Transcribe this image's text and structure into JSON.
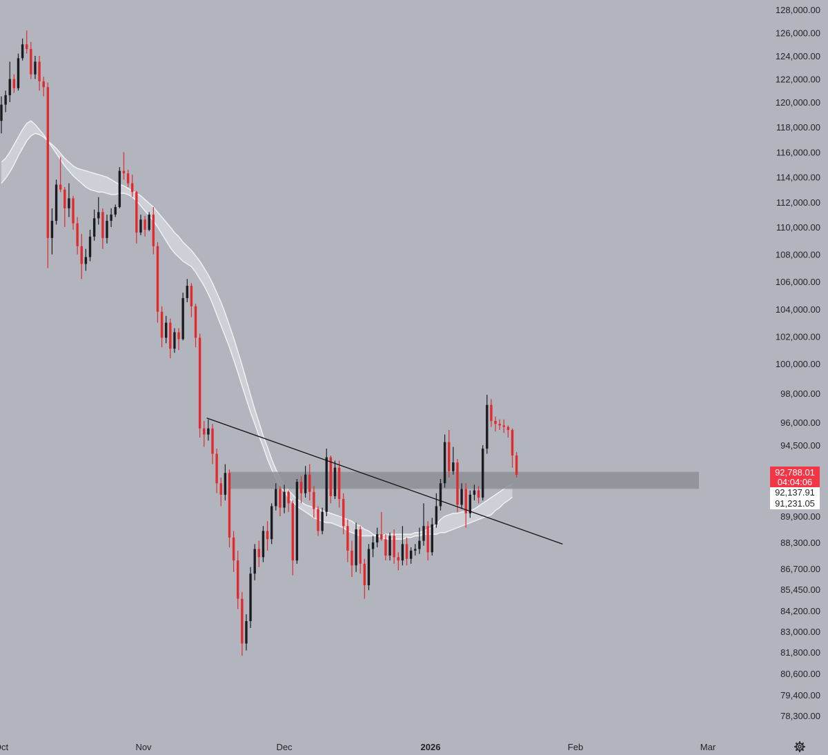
{
  "chart_data": {
    "type": "candlestick",
    "price_axis": {
      "ticks": [
        "128,000.00",
        "126,000.00",
        "124,000.00",
        "122,000.00",
        "120,000.00",
        "118,000.00",
        "116,000.00",
        "114,000.00",
        "112,000.00",
        "110,000.00",
        "108,000.00",
        "106,000.00",
        "104,000.00",
        "102,000.00",
        "100,000.00",
        "98,000.00",
        "96,000.00",
        "94,500.00",
        "92,788.01",
        "89,900.00",
        "88,300.00",
        "86,700.00",
        "85,450.00",
        "84,200.00",
        "83,000.00",
        "81,800.00",
        "80,600.00",
        "79,400.00",
        "78,300.00"
      ],
      "range": [
        77500,
        128700
      ]
    },
    "time_axis": {
      "labels": [
        {
          "text": "Oct",
          "bold": false
        },
        {
          "text": "Nov",
          "bold": false
        },
        {
          "text": "Dec",
          "bold": false
        },
        {
          "text": "2026",
          "bold": true
        },
        {
          "text": "Feb",
          "bold": false
        },
        {
          "text": "Mar",
          "bold": false
        }
      ]
    },
    "price_labels": {
      "last_price": "92,788.01",
      "countdown": "04:04:06",
      "ma_fast": "92,137.91",
      "ma_slow": "91,231.05"
    },
    "candles_ohlc": [
      [
        118500,
        120500,
        117500,
        119800
      ],
      [
        119800,
        121000,
        119200,
        120600
      ],
      [
        120600,
        123500,
        120000,
        122000
      ],
      [
        122000,
        122400,
        120800,
        121200
      ],
      [
        121200,
        124200,
        121000,
        123800
      ],
      [
        123800,
        125500,
        123600,
        125000
      ],
      [
        125000,
        126200,
        124200,
        124600
      ],
      [
        124600,
        125200,
        122000,
        122400
      ],
      [
        122400,
        124000,
        122000,
        123500
      ],
      [
        123500,
        124000,
        121000,
        121800
      ],
      [
        121800,
        122200,
        120500,
        121300
      ],
      [
        121300,
        121700,
        107000,
        109200
      ],
      [
        109200,
        111500,
        108000,
        110500
      ],
      [
        110500,
        113800,
        110200,
        113400
      ],
      [
        113400,
        115600,
        112800,
        113000
      ],
      [
        113000,
        113200,
        110000,
        111500
      ],
      [
        111500,
        113500,
        110800,
        112300
      ],
      [
        112300,
        112500,
        109800,
        110300
      ],
      [
        110300,
        110800,
        108000,
        108600
      ],
      [
        108600,
        109500,
        106200,
        107300
      ],
      [
        107300,
        108400,
        106800,
        107800
      ],
      [
        107800,
        109800,
        107500,
        109300
      ],
      [
        109300,
        111400,
        109000,
        110700
      ],
      [
        110700,
        112400,
        110200,
        111200
      ],
      [
        111200,
        111500,
        108400,
        109200
      ],
      [
        109200,
        111000,
        108800,
        110500
      ],
      [
        110500,
        111500,
        110000,
        111000
      ],
      [
        111000,
        111800,
        110800,
        111600
      ],
      [
        111600,
        114800,
        111500,
        114500
      ],
      [
        114500,
        116000,
        113800,
        114300
      ],
      [
        114300,
        114600,
        113200,
        113500
      ],
      [
        113500,
        114200,
        112400,
        112800
      ],
      [
        112800,
        112900,
        108800,
        109600
      ],
      [
        109600,
        111000,
        109400,
        110600
      ],
      [
        110600,
        110900,
        109300,
        109800
      ],
      [
        109800,
        111200,
        109700,
        111000
      ],
      [
        111000,
        111600,
        108000,
        108600
      ],
      [
        108600,
        108900,
        103000,
        103800
      ],
      [
        103800,
        104200,
        101200,
        101900
      ],
      [
        101900,
        103500,
        101500,
        103000
      ],
      [
        103000,
        103300,
        100400,
        101100
      ],
      [
        101100,
        102600,
        100800,
        102300
      ],
      [
        102300,
        102600,
        101000,
        101800
      ],
      [
        101800,
        105200,
        101700,
        104800
      ],
      [
        104800,
        106200,
        104500,
        105700
      ],
      [
        105700,
        105900,
        103400,
        104200
      ],
      [
        104200,
        104400,
        101200,
        101900
      ],
      [
        101900,
        102200,
        95000,
        95600
      ],
      [
        95600,
        96100,
        94400,
        95200
      ],
      [
        95200,
        96200,
        94800,
        95600
      ],
      [
        95600,
        95900,
        93400,
        94000
      ],
      [
        94000,
        94300,
        91500,
        92200
      ],
      [
        92200,
        92600,
        90600,
        91400
      ],
      [
        91400,
        93400,
        91000,
        92900
      ],
      [
        92900,
        93100,
        88000,
        88600
      ],
      [
        88600,
        89000,
        86500,
        87200
      ],
      [
        87200,
        87800,
        84300,
        84900
      ],
      [
        84900,
        85300,
        81600,
        82300
      ],
      [
        82300,
        84000,
        81900,
        83600
      ],
      [
        83600,
        86800,
        83200,
        86400
      ],
      [
        86400,
        88200,
        86000,
        87900
      ],
      [
        87900,
        88400,
        86800,
        87400
      ],
      [
        87400,
        89300,
        87100,
        89000
      ],
      [
        89000,
        89600,
        87800,
        88500
      ],
      [
        88500,
        90800,
        88200,
        90600
      ],
      [
        90600,
        92200,
        90300,
        91800
      ],
      [
        91800,
        92000,
        89900,
        90500
      ],
      [
        90500,
        92100,
        90100,
        91600
      ],
      [
        91600,
        91700,
        90200,
        90800
      ],
      [
        90800,
        91000,
        86300,
        87200
      ],
      [
        87200,
        92500,
        87000,
        92300
      ],
      [
        92300,
        92700,
        90800,
        91500
      ],
      [
        91500,
        93300,
        91200,
        92800
      ],
      [
        92800,
        93400,
        91000,
        91600
      ],
      [
        91600,
        92000,
        89800,
        90400
      ],
      [
        90400,
        90600,
        88700,
        89000
      ],
      [
        89000,
        90500,
        88800,
        90200
      ],
      [
        90200,
        94300,
        89900,
        93800
      ],
      [
        93800,
        93900,
        90800,
        91300
      ],
      [
        91300,
        93600,
        91100,
        93200
      ],
      [
        93200,
        93600,
        90500,
        91100
      ],
      [
        91100,
        91500,
        88800,
        89300
      ],
      [
        89300,
        89700,
        87100,
        87800
      ],
      [
        87800,
        88400,
        86200,
        86900
      ],
      [
        86900,
        89500,
        86500,
        89100
      ],
      [
        89100,
        89300,
        86400,
        87000
      ],
      [
        87000,
        87300,
        84900,
        85700
      ],
      [
        85700,
        88200,
        85400,
        87900
      ],
      [
        87900,
        88700,
        87400,
        88300
      ],
      [
        88300,
        89200,
        88000,
        88800
      ],
      [
        88800,
        90200,
        88400,
        88500
      ],
      [
        88500,
        88800,
        87200,
        87500
      ],
      [
        87500,
        88900,
        87200,
        88700
      ],
      [
        88700,
        89100,
        87000,
        87400
      ],
      [
        87400,
        87700,
        86600,
        87200
      ],
      [
        87200,
        89300,
        86900,
        88200
      ],
      [
        88200,
        88600,
        86900,
        87300
      ],
      [
        87300,
        88000,
        87000,
        87800
      ],
      [
        87800,
        88200,
        87500,
        87900
      ],
      [
        87900,
        89200,
        87600,
        88400
      ],
      [
        88400,
        90800,
        88100,
        89300
      ],
      [
        89300,
        89600,
        87200,
        87700
      ],
      [
        87700,
        89800,
        87500,
        89400
      ],
      [
        89400,
        91500,
        89200,
        90600
      ],
      [
        90600,
        92500,
        90300,
        92200
      ],
      [
        92200,
        95200,
        91900,
        94700
      ],
      [
        94700,
        95500,
        92600,
        93000
      ],
      [
        93000,
        94400,
        92800,
        93500
      ],
      [
        93500,
        93700,
        90200,
        90700
      ],
      [
        90700,
        92200,
        90400,
        91800
      ],
      [
        91800,
        92200,
        89200,
        90100
      ],
      [
        90100,
        91700,
        89800,
        91400
      ],
      [
        91400,
        92100,
        91000,
        91700
      ],
      [
        91700,
        92000,
        90800,
        91200
      ],
      [
        91200,
        94500,
        91000,
        94300
      ],
      [
        94300,
        97900,
        94000,
        97200
      ],
      [
        97200,
        97600,
        95700,
        96100
      ],
      [
        96100,
        96400,
        95400,
        95900
      ],
      [
        95900,
        96200,
        95500,
        95800
      ],
      [
        95800,
        96200,
        95300,
        95700
      ],
      [
        95700,
        95800,
        95000,
        95500
      ],
      [
        95500,
        95600,
        93200,
        93900
      ],
      [
        93900,
        94100,
        92600,
        92790
      ]
    ],
    "ma_fast_values": [
      115200,
      115500,
      116000,
      116600,
      117200,
      117800,
      118300,
      118500,
      118200,
      117800,
      117400,
      116900,
      116400,
      115900,
      115400,
      114900,
      114500,
      114100,
      113800,
      113500,
      113200,
      113000,
      112900,
      112800,
      112800,
      112700,
      112600,
      112600,
      112700,
      112700,
      112600,
      112400,
      112100,
      111700,
      111300,
      110900,
      110500,
      110000,
      109500,
      109000,
      108500,
      108100,
      107800,
      107500,
      107300,
      107100,
      106700,
      106200,
      105700,
      105100,
      104400,
      103600,
      102800,
      102000,
      101200,
      100300,
      99400,
      98500,
      97600,
      96700,
      95900,
      95100,
      94400,
      93700,
      93100,
      92500,
      92000,
      91600,
      91200,
      90900,
      90600,
      90400,
      90200,
      90000,
      89800,
      89700,
      89600,
      89500,
      89500,
      89400,
      89300,
      89200,
      89000,
      88900,
      88800,
      88700,
      88700,
      88700,
      88700,
      88700,
      88700,
      88800,
      88800,
      88800,
      88800,
      88800,
      88800,
      88800,
      88900,
      88900,
      89000,
      89100,
      89200,
      89400,
      89700,
      89900,
      90000,
      90100,
      90100,
      90200,
      90200,
      90300,
      90400,
      90600,
      90800,
      91000,
      91200,
      91400,
      91600,
      91800,
      92000,
      92138
    ],
    "ma_slow_values": [
      113500,
      113900,
      114400,
      115000,
      115700,
      116300,
      116900,
      117300,
      117500,
      117400,
      117200,
      116900,
      116600,
      116300,
      115900,
      115500,
      115200,
      114900,
      114700,
      114600,
      114500,
      114400,
      114300,
      114200,
      114100,
      114000,
      113800,
      113600,
      113400,
      113300,
      113100,
      112900,
      112700,
      112500,
      112200,
      111900,
      111600,
      111200,
      110800,
      110400,
      110000,
      109600,
      109300,
      108900,
      108600,
      108300,
      107900,
      107500,
      107000,
      106500,
      105900,
      105200,
      104500,
      103700,
      102800,
      101900,
      100900,
      99900,
      98900,
      97900,
      96900,
      96000,
      95100,
      94400,
      93700,
      93100,
      92600,
      92100,
      91700,
      91400,
      91100,
      90900,
      90700,
      90600,
      90500,
      90400,
      90300,
      90200,
      90100,
      90000,
      89900,
      89800,
      89700,
      89600,
      89400,
      89300,
      89100,
      89000,
      88800,
      88700,
      88600,
      88500,
      88500,
      88500,
      88500,
      88500,
      88600,
      88600,
      88700,
      88700,
      88800,
      88800,
      88800,
      88800,
      88900,
      88900,
      89000,
      89100,
      89200,
      89300,
      89400,
      89500,
      89600,
      89700,
      89800,
      89900,
      90000,
      90300,
      90500,
      90800,
      91000,
      91231
    ],
    "trendline": {
      "start": [
        47,
        96300
      ],
      "end": [
        128,
        88200
      ]
    },
    "resistance_zone": [
      92000,
      92800
    ],
    "colors": {
      "background": "#b2b5bd",
      "up_candle": "#1b1c21",
      "down_candle": "#e02a2d",
      "ma_line": "#f2f3f5",
      "band_fill": "#dcdee3",
      "zone": "#8c8f96",
      "last_price_label": "#f23645"
    },
    "settings_icon": "gear-icon"
  }
}
